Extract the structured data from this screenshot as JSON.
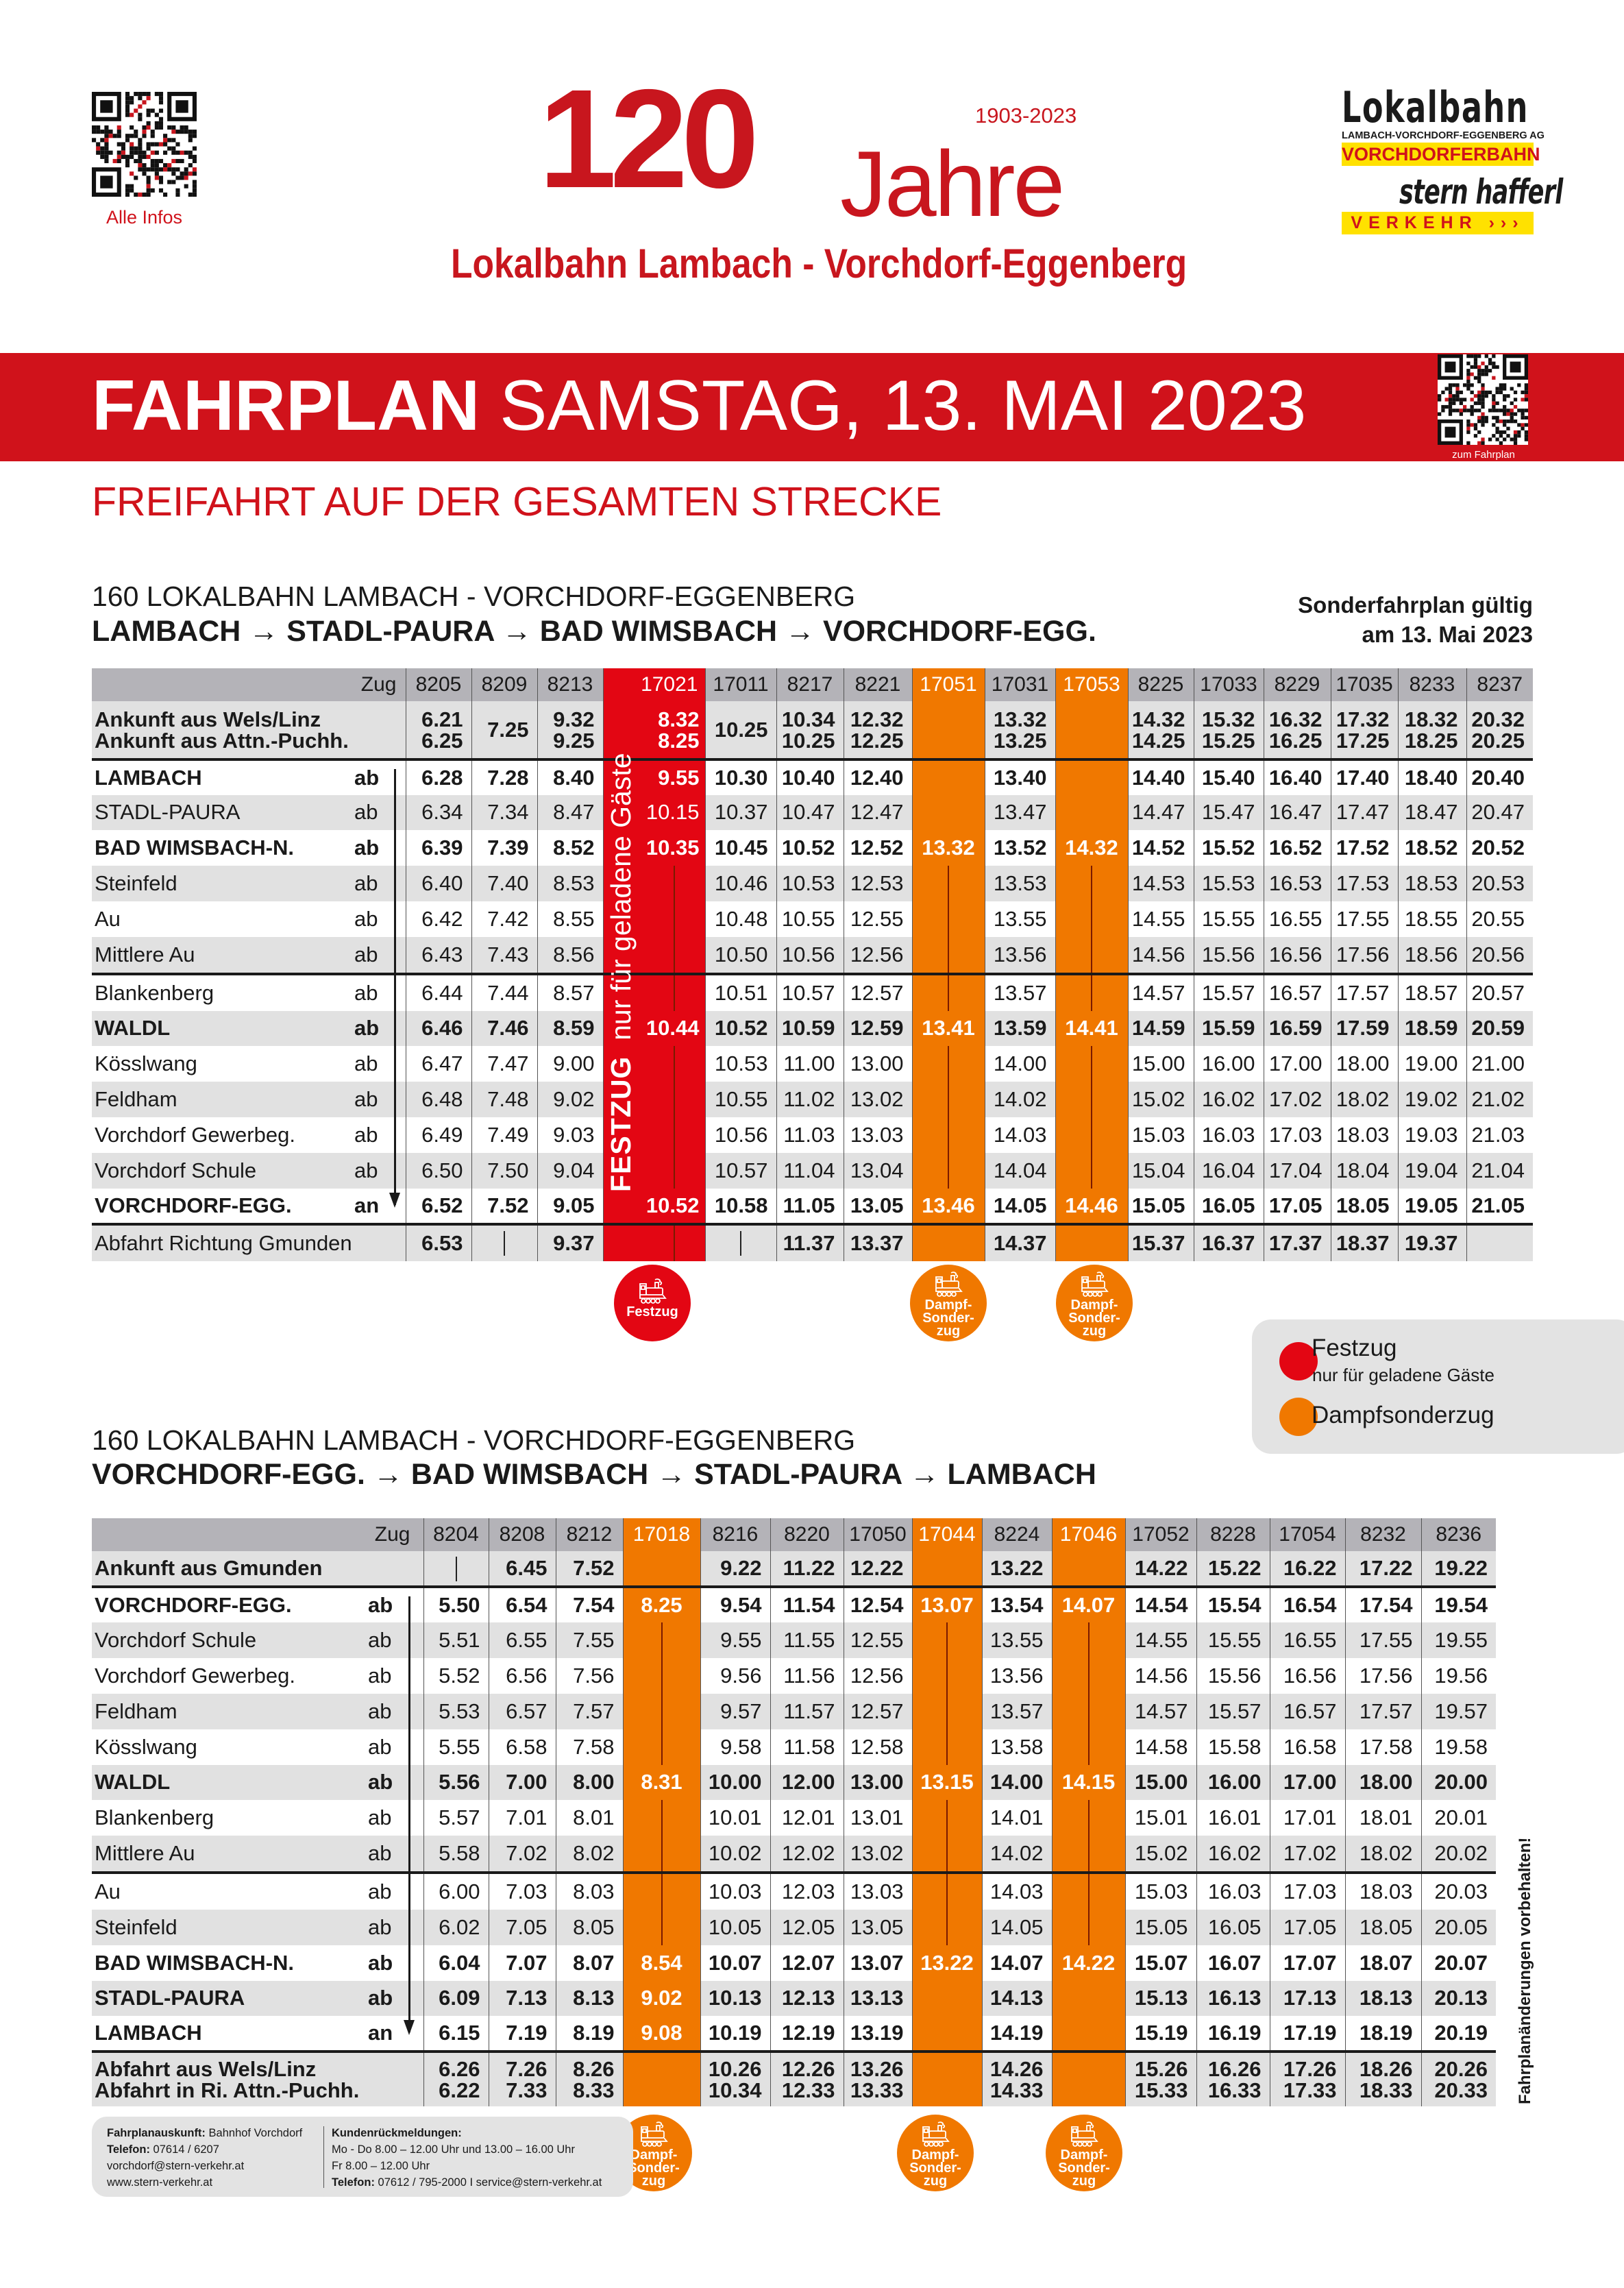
{
  "header": {
    "qr_label": "Alle Infos",
    "big_number": "120",
    "jahre": "Jahre",
    "years": "1903-2023",
    "subtitle": "Lokalbahn Lambach - Vorchdorf-Eggenberg",
    "logo_lokalbahn": {
      "word": "Lokalbahn",
      "company": "LAMBACH-VORCHDORF-EGGENBERG AG",
      "bar": "VORCHDORFERBAHN"
    },
    "logo_stern": {
      "word": "stern hafferl",
      "bar": "VERKEHR ›››"
    }
  },
  "band": {
    "title_bold": "FAHRPLAN",
    "title_rest": "SAMSTAG, 13. MAI 2023",
    "qr_label": "zum Fahrplan"
  },
  "freifahrt": "FREIFAHRT AUF DER GESAMTEN STRECKE",
  "colors": {
    "brand_red": "#d0121b",
    "festzug": "#e30613",
    "dampf": "#f07800",
    "header_gray": "#b4b3b8",
    "row_gray": "#e1e1e1",
    "logo_yellow": "#ffe100"
  },
  "section1": {
    "line": "160 LOKALBAHN LAMBACH - VORCHDORF-EGGENBERG",
    "route": "LAMBACH → STADL-PAURA → BAD WIMSBACH → VORCHDORF-EGG.",
    "valid_line1": "Sonderfahrplan gültig",
    "valid_line2": "am 13. Mai 2023"
  },
  "table1": {
    "zug_label": "Zug",
    "festzug_note_bold": "FESTZUG",
    "festzug_note": "nur für geladene Gäste",
    "columns": [
      {
        "train": "8205",
        "type": "normal"
      },
      {
        "train": "8209",
        "type": "normal"
      },
      {
        "train": "8213",
        "type": "normal"
      },
      {
        "train": "17021",
        "type": "festzug"
      },
      {
        "train": "17011",
        "type": "normal"
      },
      {
        "train": "8217",
        "type": "normal"
      },
      {
        "train": "8221",
        "type": "normal"
      },
      {
        "train": "17051",
        "type": "dampf"
      },
      {
        "train": "17031",
        "type": "normal"
      },
      {
        "train": "17053",
        "type": "dampf"
      },
      {
        "train": "8225",
        "type": "normal"
      },
      {
        "train": "17033",
        "type": "normal"
      },
      {
        "train": "8229",
        "type": "normal"
      },
      {
        "train": "17035",
        "type": "normal"
      },
      {
        "train": "8233",
        "type": "normal"
      },
      {
        "train": "8237",
        "type": "normal"
      }
    ],
    "rows": [
      {
        "kind": "info",
        "labels": [
          "Ankunft aus Wels/Linz",
          "Ankunft aus Attn.-Puchh."
        ],
        "times": [
          [
            "6.21",
            "6.25"
          ],
          [
            "",
            "7.25"
          ],
          [
            "9.32",
            "9.25"
          ],
          [
            "8.32",
            "8.25"
          ],
          [
            "",
            "10.25"
          ],
          [
            "10.34",
            "10.25"
          ],
          [
            "12.32",
            "12.25"
          ],
          [
            "",
            ""
          ],
          [
            "13.32",
            "13.25"
          ],
          [
            "",
            ""
          ],
          [
            "14.32",
            "14.25"
          ],
          [
            "15.32",
            "15.25"
          ],
          [
            "16.32",
            "16.25"
          ],
          [
            "17.32",
            "17.25"
          ],
          [
            "18.32",
            "18.25"
          ],
          [
            "20.32",
            "20.25"
          ]
        ]
      },
      {
        "station": "LAMBACH",
        "dir": "ab",
        "bold": true,
        "times": [
          "6.28",
          "7.28",
          "8.40",
          "9.55",
          "10.30",
          "10.40",
          "12.40",
          "",
          "13.40",
          "",
          "14.40",
          "15.40",
          "16.40",
          "17.40",
          "18.40",
          "20.40"
        ]
      },
      {
        "station": "STADL-PAURA",
        "dir": "ab",
        "bold": false,
        "times": [
          "6.34",
          "7.34",
          "8.47",
          "10.15",
          "10.37",
          "10.47",
          "12.47",
          "",
          "13.47",
          "",
          "14.47",
          "15.47",
          "16.47",
          "17.47",
          "18.47",
          "20.47"
        ]
      },
      {
        "station": "BAD WIMSBACH-N.",
        "dir": "ab",
        "bold": true,
        "times": [
          "6.39",
          "7.39",
          "8.52",
          "10.35",
          "10.45",
          "10.52",
          "12.52",
          "13.32",
          "13.52",
          "14.32",
          "14.52",
          "15.52",
          "16.52",
          "17.52",
          "18.52",
          "20.52"
        ]
      },
      {
        "station": "Steinfeld",
        "dir": "ab",
        "bold": false,
        "times": [
          "6.40",
          "7.40",
          "8.53",
          "|",
          "10.46",
          "10.53",
          "12.53",
          "|",
          "13.53",
          "|",
          "14.53",
          "15.53",
          "16.53",
          "17.53",
          "18.53",
          "20.53"
        ]
      },
      {
        "station": "Au",
        "dir": "ab",
        "bold": false,
        "times": [
          "6.42",
          "7.42",
          "8.55",
          "|",
          "10.48",
          "10.55",
          "12.55",
          "|",
          "13.55",
          "|",
          "14.55",
          "15.55",
          "16.55",
          "17.55",
          "18.55",
          "20.55"
        ]
      },
      {
        "station": "Mittlere Au",
        "dir": "ab",
        "bold": false,
        "times": [
          "6.43",
          "7.43",
          "8.56",
          "|",
          "10.50",
          "10.56",
          "12.56",
          "|",
          "13.56",
          "|",
          "14.56",
          "15.56",
          "16.56",
          "17.56",
          "18.56",
          "20.56"
        ]
      },
      {
        "station": "Blankenberg",
        "dir": "ab",
        "bold": false,
        "times": [
          "6.44",
          "7.44",
          "8.57",
          "|",
          "10.51",
          "10.57",
          "12.57",
          "|",
          "13.57",
          "|",
          "14.57",
          "15.57",
          "16.57",
          "17.57",
          "18.57",
          "20.57"
        ]
      },
      {
        "station": "WALDL",
        "dir": "ab",
        "bold": true,
        "times": [
          "6.46",
          "7.46",
          "8.59",
          "10.44",
          "10.52",
          "10.59",
          "12.59",
          "13.41",
          "13.59",
          "14.41",
          "14.59",
          "15.59",
          "16.59",
          "17.59",
          "18.59",
          "20.59"
        ]
      },
      {
        "station": "Kösslwang",
        "dir": "ab",
        "bold": false,
        "times": [
          "6.47",
          "7.47",
          "9.00",
          "|",
          "10.53",
          "11.00",
          "13.00",
          "|",
          "14.00",
          "|",
          "15.00",
          "16.00",
          "17.00",
          "18.00",
          "19.00",
          "21.00"
        ]
      },
      {
        "station": "Feldham",
        "dir": "ab",
        "bold": false,
        "times": [
          "6.48",
          "7.48",
          "9.02",
          "|",
          "10.55",
          "11.02",
          "13.02",
          "|",
          "14.02",
          "|",
          "15.02",
          "16.02",
          "17.02",
          "18.02",
          "19.02",
          "21.02"
        ]
      },
      {
        "station": "Vorchdorf Gewerbeg.",
        "dir": "ab",
        "bold": false,
        "times": [
          "6.49",
          "7.49",
          "9.03",
          "|",
          "10.56",
          "11.03",
          "13.03",
          "|",
          "14.03",
          "|",
          "15.03",
          "16.03",
          "17.03",
          "18.03",
          "19.03",
          "21.03"
        ]
      },
      {
        "station": "Vorchdorf Schule",
        "dir": "ab",
        "bold": false,
        "times": [
          "6.50",
          "7.50",
          "9.04",
          "|",
          "10.57",
          "11.04",
          "13.04",
          "|",
          "14.04",
          "|",
          "15.04",
          "16.04",
          "17.04",
          "18.04",
          "19.04",
          "21.04"
        ]
      },
      {
        "station": "VORCHDORF-EGG.",
        "dir": "an",
        "bold": true,
        "times": [
          "6.52",
          "7.52",
          "9.05",
          "10.52",
          "10.58",
          "11.05",
          "13.05",
          "13.46",
          "14.05",
          "14.46",
          "15.05",
          "16.05",
          "17.05",
          "18.05",
          "19.05",
          "21.05"
        ]
      },
      {
        "kind": "info1",
        "label": "Abfahrt Richtung Gmunden",
        "bold": true,
        "label_bold": false,
        "times": [
          "6.53",
          "|",
          "9.37",
          "|",
          "|",
          "11.37",
          "13.37",
          "",
          "14.37",
          "",
          "15.37",
          "16.37",
          "17.37",
          "18.37",
          "19.37",
          ""
        ]
      }
    ],
    "badges": [
      {
        "type": "festzug",
        "lines": [
          "Festzug"
        ]
      },
      {
        "type": "dampf",
        "lines": [
          "Dampf-",
          "Sonder-",
          "zug"
        ]
      },
      {
        "type": "dampf",
        "lines": [
          "Dampf-",
          "Sonder-",
          "zug"
        ]
      }
    ]
  },
  "legend": {
    "festzug": "Festzug",
    "festzug_sub": "nur für geladene Gäste",
    "dampf": "Dampfsonderzug"
  },
  "section2": {
    "line": "160 LOKALBAHN LAMBACH - VORCHDORF-EGGENBERG",
    "route": "VORCHDORF-EGG. → BAD WIMSBACH → STADL-PAURA → LAMBACH"
  },
  "table2": {
    "zug_label": "Zug",
    "columns": [
      {
        "train": "8204",
        "type": "normal"
      },
      {
        "train": "8208",
        "type": "normal"
      },
      {
        "train": "8212",
        "type": "normal"
      },
      {
        "train": "17018",
        "type": "dampf"
      },
      {
        "train": "8216",
        "type": "normal"
      },
      {
        "train": "8220",
        "type": "normal"
      },
      {
        "train": "17050",
        "type": "normal"
      },
      {
        "train": "17044",
        "type": "dampf"
      },
      {
        "train": "8224",
        "type": "normal"
      },
      {
        "train": "17046",
        "type": "dampf"
      },
      {
        "train": "17052",
        "type": "normal"
      },
      {
        "train": "8228",
        "type": "normal"
      },
      {
        "train": "17054",
        "type": "normal"
      },
      {
        "train": "8232",
        "type": "normal"
      },
      {
        "train": "8236",
        "type": "normal"
      }
    ],
    "rows": [
      {
        "kind": "info1",
        "label": "Ankunft aus Gmunden",
        "bold": true,
        "label_bold": true,
        "times": [
          "|",
          "6.45",
          "7.52",
          "",
          "9.22",
          "11.22",
          "12.22",
          "",
          "13.22",
          "",
          "14.22",
          "15.22",
          "16.22",
          "17.22",
          "19.22"
        ]
      },
      {
        "station": "VORCHDORF-EGG.",
        "dir": "ab",
        "bold": true,
        "times": [
          "5.50",
          "6.54",
          "7.54",
          "8.25",
          "9.54",
          "11.54",
          "12.54",
          "13.07",
          "13.54",
          "14.07",
          "14.54",
          "15.54",
          "16.54",
          "17.54",
          "19.54"
        ]
      },
      {
        "station": "Vorchdorf Schule",
        "dir": "ab",
        "bold": false,
        "times": [
          "5.51",
          "6.55",
          "7.55",
          "|",
          "9.55",
          "11.55",
          "12.55",
          "|",
          "13.55",
          "|",
          "14.55",
          "15.55",
          "16.55",
          "17.55",
          "19.55"
        ]
      },
      {
        "station": "Vorchdorf Gewerbeg.",
        "dir": "ab",
        "bold": false,
        "times": [
          "5.52",
          "6.56",
          "7.56",
          "|",
          "9.56",
          "11.56",
          "12.56",
          "|",
          "13.56",
          "|",
          "14.56",
          "15.56",
          "16.56",
          "17.56",
          "19.56"
        ]
      },
      {
        "station": "Feldham",
        "dir": "ab",
        "bold": false,
        "times": [
          "5.53",
          "6.57",
          "7.57",
          "|",
          "9.57",
          "11.57",
          "12.57",
          "|",
          "13.57",
          "|",
          "14.57",
          "15.57",
          "16.57",
          "17.57",
          "19.57"
        ]
      },
      {
        "station": "Kösslwang",
        "dir": "ab",
        "bold": false,
        "times": [
          "5.55",
          "6.58",
          "7.58",
          "|",
          "9.58",
          "11.58",
          "12.58",
          "|",
          "13.58",
          "|",
          "14.58",
          "15.58",
          "16.58",
          "17.58",
          "19.58"
        ]
      },
      {
        "station": "WALDL",
        "dir": "ab",
        "bold": true,
        "times": [
          "5.56",
          "7.00",
          "8.00",
          "8.31",
          "10.00",
          "12.00",
          "13.00",
          "13.15",
          "14.00",
          "14.15",
          "15.00",
          "16.00",
          "17.00",
          "18.00",
          "20.00"
        ]
      },
      {
        "station": "Blankenberg",
        "dir": "ab",
        "bold": false,
        "times": [
          "5.57",
          "7.01",
          "8.01",
          "|",
          "10.01",
          "12.01",
          "13.01",
          "|",
          "14.01",
          "|",
          "15.01",
          "16.01",
          "17.01",
          "18.01",
          "20.01"
        ]
      },
      {
        "station": "Mittlere Au",
        "dir": "ab",
        "bold": false,
        "times": [
          "5.58",
          "7.02",
          "8.02",
          "|",
          "10.02",
          "12.02",
          "13.02",
          "|",
          "14.02",
          "|",
          "15.02",
          "16.02",
          "17.02",
          "18.02",
          "20.02"
        ]
      },
      {
        "station": "Au",
        "dir": "ab",
        "bold": false,
        "times": [
          "6.00",
          "7.03",
          "8.03",
          "|",
          "10.03",
          "12.03",
          "13.03",
          "|",
          "14.03",
          "|",
          "15.03",
          "16.03",
          "17.03",
          "18.03",
          "20.03"
        ]
      },
      {
        "station": "Steinfeld",
        "dir": "ab",
        "bold": false,
        "times": [
          "6.02",
          "7.05",
          "8.05",
          "|",
          "10.05",
          "12.05",
          "13.05",
          "|",
          "14.05",
          "|",
          "15.05",
          "16.05",
          "17.05",
          "18.05",
          "20.05"
        ]
      },
      {
        "station": "BAD WIMSBACH-N.",
        "dir": "ab",
        "bold": true,
        "times": [
          "6.04",
          "7.07",
          "8.07",
          "8.54",
          "10.07",
          "12.07",
          "13.07",
          "13.22",
          "14.07",
          "14.22",
          "15.07",
          "16.07",
          "17.07",
          "18.07",
          "20.07"
        ]
      },
      {
        "station": "STADL-PAURA",
        "dir": "ab",
        "bold": true,
        "times": [
          "6.09",
          "7.13",
          "8.13",
          "9.02",
          "10.13",
          "12.13",
          "13.13",
          "",
          "14.13",
          "",
          "15.13",
          "16.13",
          "17.13",
          "18.13",
          "20.13"
        ]
      },
      {
        "station": "LAMBACH",
        "dir": "an",
        "bold": true,
        "times": [
          "6.15",
          "7.19",
          "8.19",
          "9.08",
          "10.19",
          "12.19",
          "13.19",
          "",
          "14.19",
          "",
          "15.19",
          "16.19",
          "17.19",
          "18.19",
          "20.19"
        ]
      },
      {
        "kind": "info",
        "labels": [
          "Abfahrt aus Wels/Linz",
          "Abfahrt in Ri. Attn.-Puchh."
        ],
        "times": [
          [
            "6.26",
            "6.22"
          ],
          [
            "7.26",
            "7.33"
          ],
          [
            "8.26",
            "8.33"
          ],
          [
            "",
            ""
          ],
          [
            "10.26",
            "10.34"
          ],
          [
            "12.26",
            "12.33"
          ],
          [
            "13.26",
            "13.33"
          ],
          [
            "",
            ""
          ],
          [
            "14.26",
            "14.33"
          ],
          [
            "",
            ""
          ],
          [
            "15.26",
            "15.33"
          ],
          [
            "16.26",
            "16.33"
          ],
          [
            "17.26",
            "17.33"
          ],
          [
            "18.26",
            "18.33"
          ],
          [
            "20.26",
            "20.33"
          ]
        ]
      }
    ],
    "badges": [
      {
        "type": "dampf",
        "lines": [
          "Dampf-",
          "Sonder-",
          "zug"
        ]
      },
      {
        "type": "dampf",
        "lines": [
          "Dampf-",
          "Sonder-",
          "zug"
        ]
      },
      {
        "type": "dampf",
        "lines": [
          "Dampf-",
          "Sonder-",
          "zug"
        ]
      }
    ]
  },
  "footer": {
    "info_label": "Fahrplanauskunft:",
    "info_value": "Bahnhof Vorchdorf",
    "phone_label": "Telefon:",
    "phone_value": "07614 / 6207",
    "email": "vorchdorf@stern-verkehr.at",
    "web": "www.stern-verkehr.at",
    "feedback_label": "Kundenrückmeldungen:",
    "hours1": "Mo - Do 8.00 – 12.00 Uhr und 13.00 – 16.00 Uhr",
    "hours2": "Fr 8.00 – 12.00 Uhr",
    "phone2_label": "Telefon:",
    "phone2_value": "07612 / 795-2000  I  service@stern-verkehr.at"
  },
  "disclaimer": "Fahrplanänderungen vorbehalten!"
}
